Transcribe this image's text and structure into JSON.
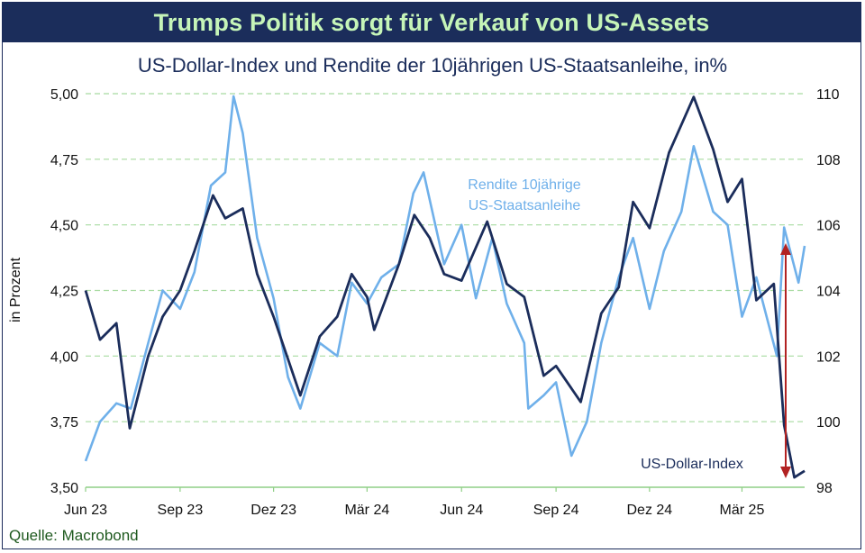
{
  "header": {
    "title": "Trumps Politik sorgt für Verkauf von US-Assets",
    "subtitle": "US-Dollar-Index und Rendite der 10jährigen US-Staatsanleihe, in%",
    "source": "Quelle: Macrobond"
  },
  "chart_data": {
    "type": "line",
    "ylabel": "in Prozent",
    "x_ticks": [
      "Jun 23",
      "Sep 23",
      "Dez 23",
      "Mär 24",
      "Jun 24",
      "Sep 24",
      "Dez 24",
      "Mär 25"
    ],
    "x_tick_dates": [
      "2023-06-01",
      "2023-09-01",
      "2023-12-01",
      "2024-03-01",
      "2024-06-01",
      "2024-09-01",
      "2024-12-01",
      "2025-03-01"
    ],
    "x_range": [
      "2023-06-01",
      "2025-05-01"
    ],
    "y_left": {
      "range": [
        3.5,
        5.0
      ],
      "ticks": [
        "3,50",
        "3,75",
        "4,00",
        "4,25",
        "4,50",
        "4,75",
        "5,00"
      ],
      "tick_values": [
        3.5,
        3.75,
        4.0,
        4.25,
        4.5,
        4.75,
        5.0
      ]
    },
    "y_right": {
      "range": [
        98,
        110
      ],
      "ticks": [
        "98",
        "100",
        "102",
        "104",
        "106",
        "108",
        "110"
      ],
      "tick_values": [
        98,
        100,
        102,
        104,
        106,
        108,
        110
      ]
    },
    "grid": "horizontal dashed",
    "colors": {
      "yield": "#6fb0ea",
      "usd": "#1b2d5b",
      "arrow": "#b22222",
      "grid": "#a8dba0"
    },
    "annotations": {
      "yield_label": [
        "Rendite 10jährige",
        "US-Staatsanleihe"
      ],
      "usd_label": "US-Dollar-Index"
    },
    "series": [
      {
        "name": "Rendite 10jährige US-Staatsanleihe",
        "axis": "left",
        "points": [
          [
            "2023-06-01",
            3.6
          ],
          [
            "2023-06-15",
            3.75
          ],
          [
            "2023-07-01",
            3.82
          ],
          [
            "2023-07-15",
            3.8
          ],
          [
            "2023-08-01",
            4.05
          ],
          [
            "2023-08-15",
            4.25
          ],
          [
            "2023-09-01",
            4.18
          ],
          [
            "2023-09-15",
            4.32
          ],
          [
            "2023-10-01",
            4.65
          ],
          [
            "2023-10-15",
            4.7
          ],
          [
            "2023-10-23",
            4.99
          ],
          [
            "2023-11-01",
            4.85
          ],
          [
            "2023-11-15",
            4.45
          ],
          [
            "2023-12-01",
            4.22
          ],
          [
            "2023-12-15",
            3.92
          ],
          [
            "2023-12-27",
            3.8
          ],
          [
            "2024-01-15",
            4.05
          ],
          [
            "2024-02-01",
            4.0
          ],
          [
            "2024-02-15",
            4.28
          ],
          [
            "2024-03-01",
            4.2
          ],
          [
            "2024-03-15",
            4.3
          ],
          [
            "2024-04-01",
            4.35
          ],
          [
            "2024-04-15",
            4.62
          ],
          [
            "2024-04-25",
            4.7
          ],
          [
            "2024-05-15",
            4.35
          ],
          [
            "2024-06-01",
            4.5
          ],
          [
            "2024-06-15",
            4.22
          ],
          [
            "2024-07-01",
            4.45
          ],
          [
            "2024-07-15",
            4.2
          ],
          [
            "2024-08-01",
            4.05
          ],
          [
            "2024-08-05",
            3.8
          ],
          [
            "2024-08-20",
            3.85
          ],
          [
            "2024-09-01",
            3.9
          ],
          [
            "2024-09-16",
            3.62
          ],
          [
            "2024-10-01",
            3.75
          ],
          [
            "2024-10-15",
            4.05
          ],
          [
            "2024-11-01",
            4.3
          ],
          [
            "2024-11-15",
            4.45
          ],
          [
            "2024-12-01",
            4.18
          ],
          [
            "2024-12-15",
            4.4
          ],
          [
            "2025-01-01",
            4.55
          ],
          [
            "2025-01-13",
            4.8
          ],
          [
            "2025-02-01",
            4.55
          ],
          [
            "2025-02-15",
            4.5
          ],
          [
            "2025-03-01",
            4.15
          ],
          [
            "2025-03-15",
            4.3
          ],
          [
            "2025-04-04",
            4.0
          ],
          [
            "2025-04-11",
            4.49
          ],
          [
            "2025-04-25",
            4.28
          ],
          [
            "2025-05-01",
            4.42
          ]
        ]
      },
      {
        "name": "US-Dollar-Index",
        "axis": "right",
        "points": [
          [
            "2023-06-01",
            104.0
          ],
          [
            "2023-06-15",
            102.5
          ],
          [
            "2023-07-01",
            103.0
          ],
          [
            "2023-07-14",
            99.8
          ],
          [
            "2023-08-01",
            102.0
          ],
          [
            "2023-08-15",
            103.2
          ],
          [
            "2023-09-01",
            104.0
          ],
          [
            "2023-09-15",
            105.2
          ],
          [
            "2023-10-03",
            106.9
          ],
          [
            "2023-10-15",
            106.2
          ],
          [
            "2023-11-01",
            106.5
          ],
          [
            "2023-11-15",
            104.5
          ],
          [
            "2023-12-01",
            103.2
          ],
          [
            "2023-12-27",
            100.8
          ],
          [
            "2024-01-15",
            102.6
          ],
          [
            "2024-02-01",
            103.2
          ],
          [
            "2024-02-15",
            104.5
          ],
          [
            "2024-03-01",
            103.8
          ],
          [
            "2024-03-08",
            102.8
          ],
          [
            "2024-04-01",
            104.8
          ],
          [
            "2024-04-16",
            106.3
          ],
          [
            "2024-05-01",
            105.6
          ],
          [
            "2024-05-15",
            104.5
          ],
          [
            "2024-06-01",
            104.3
          ],
          [
            "2024-06-26",
            106.1
          ],
          [
            "2024-07-15",
            104.2
          ],
          [
            "2024-08-01",
            103.8
          ],
          [
            "2024-08-20",
            101.4
          ],
          [
            "2024-09-01",
            101.7
          ],
          [
            "2024-09-25",
            100.6
          ],
          [
            "2024-10-15",
            103.3
          ],
          [
            "2024-11-01",
            104.1
          ],
          [
            "2024-11-15",
            106.7
          ],
          [
            "2024-12-01",
            105.9
          ],
          [
            "2024-12-20",
            108.2
          ],
          [
            "2025-01-13",
            109.9
          ],
          [
            "2025-02-01",
            108.3
          ],
          [
            "2025-02-15",
            106.7
          ],
          [
            "2025-03-01",
            107.4
          ],
          [
            "2025-03-15",
            103.7
          ],
          [
            "2025-04-01",
            104.2
          ],
          [
            "2025-04-11",
            99.9
          ],
          [
            "2025-04-21",
            98.3
          ],
          [
            "2025-05-01",
            98.5
          ]
        ]
      }
    ]
  }
}
